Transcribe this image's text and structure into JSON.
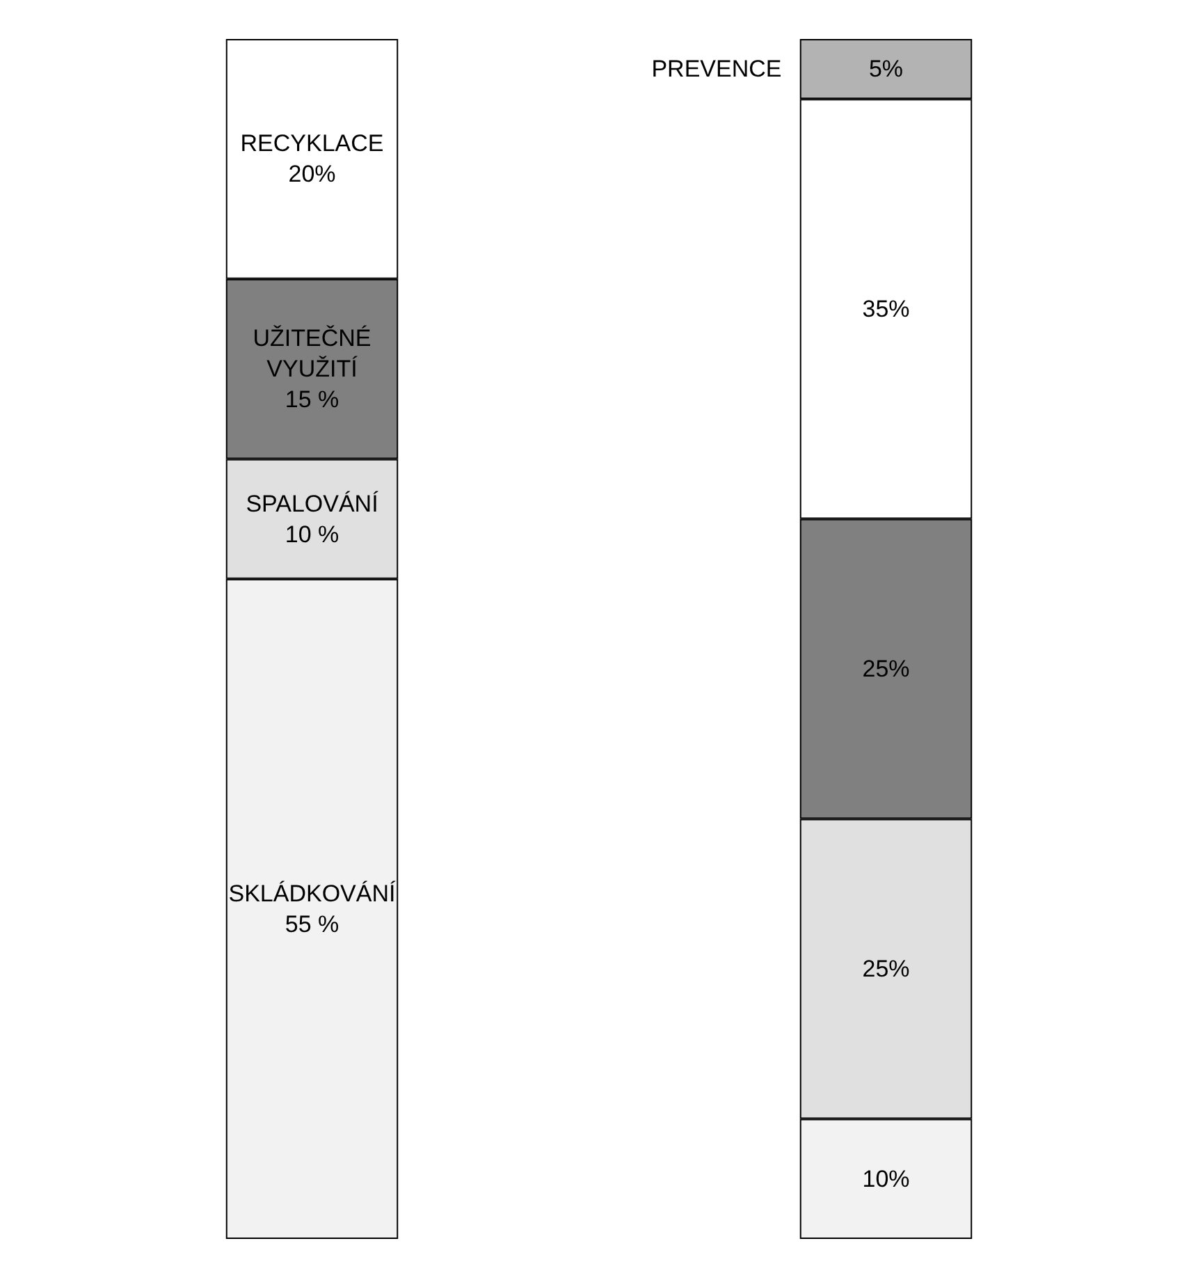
{
  "chart_data": {
    "type": "bar",
    "stacked": true,
    "categories": [
      null,
      null
    ],
    "series": [
      {
        "name": "SKLÁDKOVÁNÍ",
        "color": "#f2f2f2",
        "values": [
          55,
          10
        ],
        "value_labels": [
          "55 %",
          "10%"
        ]
      },
      {
        "name": "SPALOVÁNÍ",
        "color": "#e0e0e0",
        "values": [
          10,
          25
        ],
        "value_labels": [
          "10 %",
          "25%"
        ]
      },
      {
        "name": "UŽITEČNÉ VYUŽITÍ",
        "color": "#808080",
        "values": [
          15,
          25
        ],
        "value_labels": [
          "15 %",
          "25%"
        ]
      },
      {
        "name": "RECYKLACE",
        "color": "#ffffff",
        "values": [
          20,
          35
        ],
        "value_labels": [
          "20%",
          "35%"
        ]
      },
      {
        "name": "PREVENCE",
        "color": "#b3b3b3",
        "values": [
          null,
          5
        ],
        "value_labels": [
          null,
          "5%"
        ]
      }
    ],
    "legend": false
  }
}
